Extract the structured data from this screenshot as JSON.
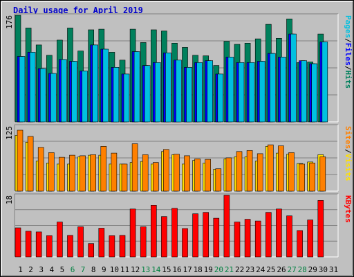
{
  "title": "Daily usage for April 2019",
  "colors": {
    "title": "#0000cc",
    "hits": "#00805c",
    "files": "#0000ff",
    "pages": "#00c0e0",
    "visits": "#ffe000",
    "sites": "#ff8000",
    "kbytes": "#ff0000",
    "weekend_label": "#008040",
    "weekday_label": "#000000"
  },
  "chart_data": [
    {
      "type": "bar",
      "panel": "hits-files-pages",
      "ymax_label": "176",
      "ylim": [
        0,
        176
      ],
      "legend": [
        "Pages",
        "/",
        "Files",
        "/",
        "Hits"
      ],
      "categories": [
        "1",
        "2",
        "3",
        "4",
        "5",
        "6",
        "7",
        "8",
        "9",
        "10",
        "11",
        "12",
        "13",
        "14",
        "15",
        "16",
        "17",
        "18",
        "19",
        "20",
        "21",
        "22",
        "23",
        "24",
        "25",
        "26",
        "27",
        "28",
        "29",
        "30",
        "31"
      ],
      "series": [
        {
          "name": "Hits",
          "values": [
            176,
            155,
            127,
            110,
            135,
            155,
            117,
            152,
            153,
            115,
            102,
            153,
            131,
            152,
            150,
            130,
            123,
            110,
            109,
            93,
            133,
            128,
            130,
            137,
            161,
            138,
            170,
            98,
            99,
            145,
            0
          ]
        },
        {
          "name": "Files",
          "values": [
            108,
            115,
            88,
            80,
            103,
            100,
            84,
            127,
            120,
            90,
            79,
            116,
            93,
            98,
            114,
            102,
            90,
            98,
            101,
            79,
            107,
            98,
            98,
            100,
            113,
            107,
            145,
            101,
            96,
            132,
            0
          ]
        },
        {
          "name": "Pages",
          "values": [
            108,
            115,
            88,
            80,
            103,
            100,
            84,
            127,
            120,
            90,
            79,
            116,
            93,
            98,
            114,
            102,
            90,
            98,
            101,
            79,
            107,
            98,
            98,
            100,
            113,
            107,
            145,
            101,
            96,
            132,
            0
          ]
        }
      ]
    },
    {
      "type": "bar",
      "panel": "visits-sites",
      "ymax_label": "125",
      "ylim": [
        0,
        125
      ],
      "legend": [
        "Sites",
        "/",
        "Visits"
      ],
      "categories": [
        "1",
        "2",
        "3",
        "4",
        "5",
        "6",
        "7",
        "8",
        "9",
        "10",
        "11",
        "12",
        "13",
        "14",
        "15",
        "16",
        "17",
        "18",
        "19",
        "20",
        "21",
        "22",
        "23",
        "24",
        "25",
        "26",
        "27",
        "28",
        "29",
        "30",
        "31"
      ],
      "series": [
        {
          "name": "Visits",
          "values": [
            107,
            94,
            58,
            54,
            52,
            52,
            66,
            69,
            69,
            52,
            52,
            55,
            57,
            52,
            76,
            70,
            52,
            59,
            54,
            42,
            62,
            66,
            66,
            58,
            86,
            73,
            71,
            53,
            56,
            70,
            0
          ]
        },
        {
          "name": "Sites",
          "values": [
            117,
            105,
            84,
            74,
            65,
            69,
            68,
            70,
            86,
            73,
            52,
            91,
            70,
            55,
            80,
            71,
            68,
            62,
            61,
            43,
            64,
            76,
            78,
            72,
            89,
            87,
            74,
            52,
            54,
            66,
            0
          ]
        }
      ]
    },
    {
      "type": "bar",
      "panel": "kbytes",
      "ymax_label": "18",
      "ylim": [
        0,
        18
      ],
      "legend": [
        "KBytes"
      ],
      "categories": [
        "1",
        "2",
        "3",
        "4",
        "5",
        "6",
        "7",
        "8",
        "9",
        "10",
        "11",
        "12",
        "13",
        "14",
        "15",
        "16",
        "17",
        "18",
        "19",
        "20",
        "21",
        "22",
        "23",
        "24",
        "25",
        "26",
        "27",
        "28",
        "29",
        "30",
        "31"
      ],
      "series": [
        {
          "name": "KBytes",
          "values": [
            8.5,
            7.5,
            7.3,
            6.2,
            10.2,
            6.3,
            8.8,
            3.9,
            8.4,
            6.2,
            6.3,
            14.0,
            8.8,
            15.1,
            11.8,
            14.2,
            8.3,
            12.6,
            13.0,
            11.3,
            18.0,
            10.2,
            11.0,
            10.5,
            13.0,
            14.0,
            12.0,
            7.7,
            10.8,
            16.5,
            0
          ]
        }
      ]
    }
  ],
  "x_labels": [
    "1",
    "2",
    "3",
    "4",
    "5",
    "6",
    "7",
    "8",
    "9",
    "10",
    "11",
    "12",
    "13",
    "14",
    "15",
    "16",
    "17",
    "18",
    "19",
    "20",
    "21",
    "22",
    "23",
    "24",
    "25",
    "26",
    "27",
    "28",
    "29",
    "30",
    "31"
  ],
  "weekend_days": [
    6,
    7,
    13,
    14,
    20,
    21,
    27,
    28
  ]
}
